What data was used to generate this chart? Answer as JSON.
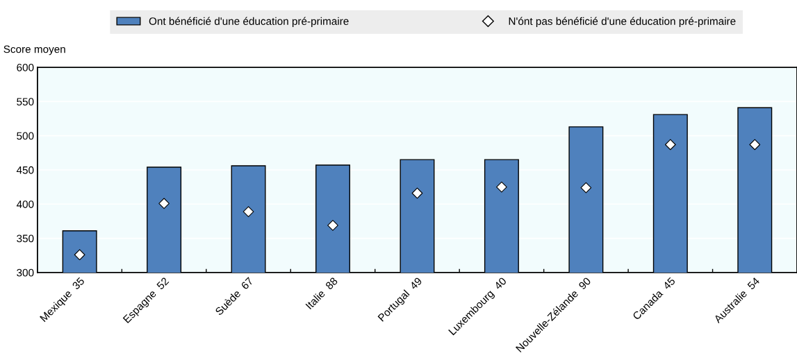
{
  "chart_data": {
    "type": "bar",
    "ylabel": "Score moyen",
    "categories": [
      "Mexique  35",
      "Espagne  52",
      "Suède  67",
      "Italie  88",
      "Portugal  49",
      "Luxembourg  40",
      "Nouvelle-Zélande  90",
      "Canada  45",
      "Australie  54"
    ],
    "series": [
      {
        "name": "Ont bénéficié d'une éducation pré-primaire",
        "color": "#4f81bd",
        "values": [
          361,
          454,
          456,
          457,
          465,
          465,
          513,
          531,
          541
        ]
      },
      {
        "name": "N'ónt pas bénéficié d'une éducation pré-primaire",
        "color": "#ffffff",
        "type": "scatter",
        "marker": "diamond",
        "values": [
          326,
          401,
          389,
          369,
          416,
          425,
          424,
          487,
          487
        ]
      }
    ],
    "ylim": [
      300,
      600
    ],
    "yticks": [
      300,
      350,
      400,
      450,
      500,
      550,
      600
    ],
    "grid": "y",
    "legend": "top"
  }
}
